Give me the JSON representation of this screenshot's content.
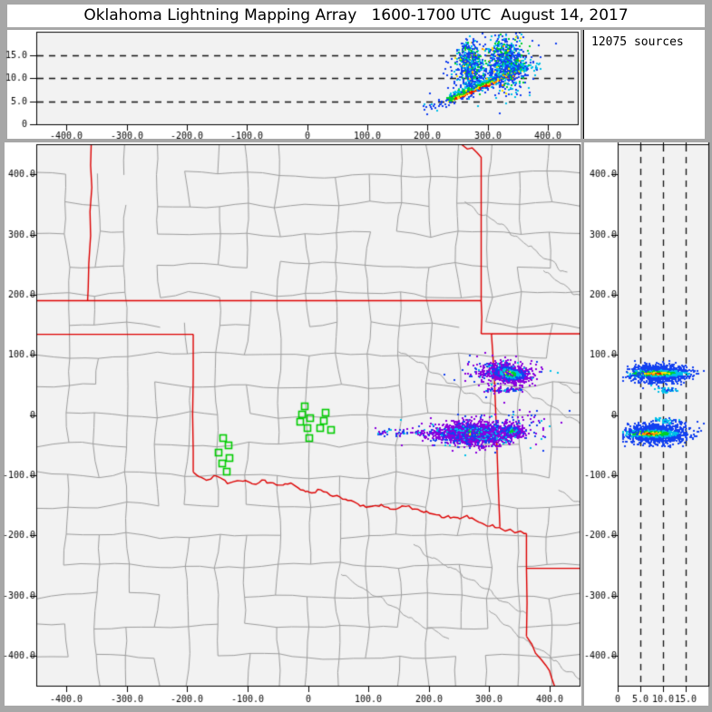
{
  "chart_data": {
    "type": "scatter",
    "title": "Oklahoma Lightning Mapping Array   1600-1700 UTC  August 14, 2017",
    "sources": 12075,
    "sources_label": "12075 sources",
    "seed": 20170814,
    "ui_colors": {
      "frame_bg": "#a7a7a7",
      "panel_bg": "#ffffff",
      "plot_bg": "#f2f2f2",
      "axis": "#000000",
      "dashed_line": "#111111"
    },
    "point_colors": {
      "purple": "#8a00dd",
      "blue": "#1240f0",
      "cyan": "#00c0e8",
      "green": "#00cf2e",
      "yellow": "#ffe800",
      "orange": "#ff9500",
      "red": "#ee1000",
      "darkred": "#b00000"
    },
    "km_ticks": [
      {
        "v": -400,
        "label": "-400.0"
      },
      {
        "v": -300,
        "label": "-300.0"
      },
      {
        "v": -200,
        "label": "-200.0"
      },
      {
        "v": -100,
        "label": "-100.0"
      },
      {
        "v": 0,
        "label": "0"
      },
      {
        "v": 100,
        "label": "100.0"
      },
      {
        "v": 200,
        "label": "200.0"
      },
      {
        "v": 300,
        "label": "300.0"
      },
      {
        "v": 400,
        "label": "400.0"
      }
    ],
    "alt_ticks": [
      {
        "v": 0,
        "label": "0"
      },
      {
        "v": 5,
        "label": "5.0"
      },
      {
        "v": 10,
        "label": "10.0"
      },
      {
        "v": 15,
        "label": "15.0"
      }
    ],
    "panels": {
      "ew": {
        "x_range": [
          -450,
          450
        ],
        "alt_range": [
          0,
          20
        ],
        "dashed_alts": [
          5,
          10,
          15
        ]
      },
      "plan": {
        "x_range": [
          -450,
          450
        ],
        "y_range": [
          -450,
          450
        ]
      },
      "ns": {
        "alt_range": [
          0,
          20
        ],
        "y_range": [
          -450,
          450
        ],
        "dashed_alts": [
          5,
          10,
          15
        ],
        "top_tick_alts": [
          0,
          5,
          10,
          15,
          20
        ]
      }
    },
    "map": {
      "state_border_color": "#dd0000",
      "county_color": "#9d9d9d",
      "station_color": "#00cc00",
      "state_borders": [
        [
          [
            -450,
            190
          ],
          [
            287,
            190
          ]
        ],
        [
          [
            254,
            450
          ],
          [
            264,
            442
          ],
          [
            272,
            444
          ],
          [
            280,
            436
          ],
          [
            287,
            428
          ],
          [
            287,
            190
          ]
        ],
        [
          [
            287,
            190
          ],
          [
            288,
            162
          ],
          [
            287,
            135
          ]
        ],
        [
          [
            287,
            135
          ],
          [
            304,
            135
          ]
        ],
        [
          [
            304,
            135
          ],
          [
            450,
            135
          ]
        ],
        [
          [
            304,
            135
          ],
          [
            309,
            60
          ],
          [
            312,
            -20
          ],
          [
            315,
            -110
          ],
          [
            318,
            -186
          ]
        ],
        [
          [
            -450,
            134
          ],
          [
            -190,
            134
          ]
        ],
        [
          [
            -359,
            450
          ],
          [
            -360,
            415
          ],
          [
            -358,
            378
          ],
          [
            -361,
            338
          ],
          [
            -360,
            298
          ],
          [
            -363,
            252
          ],
          [
            -364,
            210
          ],
          [
            -365,
            190
          ]
        ],
        [
          [
            -190,
            134
          ],
          [
            -190,
            62
          ],
          [
            -191,
            0
          ],
          [
            -190,
            -60
          ],
          [
            -190,
            -95
          ]
        ],
        [
          [
            318,
            -188
          ],
          [
            327,
            -193
          ],
          [
            335,
            -190
          ],
          [
            343,
            -196
          ],
          [
            352,
            -193
          ],
          [
            358,
            -197
          ],
          [
            362,
            -197
          ]
        ],
        [
          [
            362,
            -197
          ],
          [
            362,
            -255
          ],
          [
            363,
            -312
          ],
          [
            362,
            -368
          ]
        ],
        [
          [
            362,
            -255
          ],
          [
            450,
            -255
          ]
        ],
        [
          [
            362,
            -368
          ],
          [
            371,
            -381
          ],
          [
            377,
            -396
          ],
          [
            386,
            -406
          ],
          [
            394,
            -416
          ],
          [
            400,
            -425
          ],
          [
            404,
            -438
          ],
          [
            409,
            -452
          ]
        ]
      ],
      "red_river": [
        [
          -190,
          -95
        ],
        [
          -172,
          -108
        ],
        [
          -152,
          -101
        ],
        [
          -133,
          -112
        ],
        [
          -112,
          -107
        ],
        [
          -92,
          -115
        ],
        [
          -72,
          -109
        ],
        [
          -52,
          -117
        ],
        [
          -32,
          -113
        ],
        [
          -12,
          -123
        ],
        [
          2,
          -128
        ],
        [
          22,
          -125
        ],
        [
          42,
          -133
        ],
        [
          62,
          -140
        ],
        [
          82,
          -148
        ],
        [
          102,
          -155
        ],
        [
          122,
          -151
        ],
        [
          142,
          -158
        ],
        [
          162,
          -151
        ],
        [
          182,
          -158
        ],
        [
          202,
          -162
        ],
        [
          222,
          -168
        ],
        [
          242,
          -172
        ],
        [
          262,
          -169
        ],
        [
          282,
          -178
        ],
        [
          302,
          -184
        ],
        [
          318,
          -188
        ]
      ],
      "county_grid": {
        "cols": 18,
        "rows": 18,
        "jitter_km": 6,
        "skip": 0.18,
        "west_skip_boost": 0.15
      },
      "rivers": {
        "starts": [
          [
            150,
            105
          ],
          [
            295,
            80
          ],
          [
            415,
            55
          ],
          [
            175,
            -215
          ],
          [
            300,
            -325
          ],
          [
            55,
            -265
          ],
          [
            415,
            -125
          ],
          [
            260,
            355
          ],
          [
            390,
            240
          ]
        ],
        "steps": 45
      },
      "stations": [
        [
          -5.6,
          14.5
        ],
        [
          -9.1,
          0.9
        ],
        [
          -12.5,
          -11.8
        ],
        [
          4.1,
          -5.7
        ],
        [
          -0.5,
          -21.7
        ],
        [
          2.6,
          -38.9
        ],
        [
          19.6,
          -22.3
        ],
        [
          29.1,
          3.9
        ],
        [
          26.7,
          -9.7
        ],
        [
          38.8,
          -24.3
        ],
        [
          -140,
          -38
        ],
        [
          -132,
          -51
        ],
        [
          -148,
          -62
        ],
        [
          -130,
          -71
        ],
        [
          -142,
          -80
        ],
        [
          -135,
          -94
        ]
      ]
    },
    "palettes": {
      "plume": [
        [
          "blue",
          0.5
        ],
        [
          "cyan",
          0.27
        ],
        [
          "green",
          0.17
        ],
        [
          "yellow",
          0.04
        ],
        [
          "orange",
          0.02
        ]
      ],
      "sparseblue": [
        [
          "blue",
          0.8
        ],
        [
          "cyan",
          0.2
        ]
      ],
      "cyanblue": [
        [
          "cyan",
          0.6
        ],
        [
          "blue",
          0.4
        ]
      ],
      "purpleblue": [
        [
          "purple",
          0.55
        ],
        [
          "blue",
          0.33
        ],
        [
          "cyan",
          0.12
        ]
      ]
    },
    "lightning": {
      "ew": [
        {
          "kind": "streak",
          "n": 1500,
          "x1": 236,
          "a1": 4.95,
          "x2": 361,
          "a2": 11.9
        },
        {
          "kind": "gauss",
          "n": 520,
          "cx": 271,
          "cy": 12.8,
          "sx": 10,
          "sy": 2.5,
          "palette": "plume"
        },
        {
          "kind": "gauss",
          "n": 680,
          "cx": 331,
          "cy": 13.4,
          "sx": 15,
          "sy": 2.7,
          "palette": "plume"
        },
        {
          "kind": "gauss",
          "n": 130,
          "cx": 300,
          "cy": 12.2,
          "sx": 46,
          "sy": 3.6,
          "palette": "sparseblue"
        },
        {
          "kind": "line",
          "n": 28,
          "x1": 192,
          "y1": 3.0,
          "x2": 236,
          "y2": 4.9,
          "jitter": 0.7,
          "palette": "sparseblue"
        },
        {
          "kind": "line",
          "n": 26,
          "x1": 361,
          "y1": 11.9,
          "x2": 391,
          "y2": 12.7,
          "jitter": 0.5,
          "palette": "cyanblue"
        }
      ],
      "plan": [
        {
          "kind": "ellipse",
          "n": 950,
          "cx": 333,
          "cy": 69,
          "sx": 17,
          "sy": 7,
          "rot_deg": -9,
          "thresholds": [
            [
              0.38,
              "yellow"
            ],
            [
              0.75,
              "green"
            ],
            [
              1.1,
              "cyan"
            ],
            [
              1.55,
              "blue"
            ],
            [
              9,
              "purple"
            ]
          ]
        },
        {
          "kind": "gauss",
          "n": 160,
          "cx": 320,
          "cy": 70,
          "sx": 36,
          "sy": 12,
          "palette": "purpleblue"
        },
        {
          "kind": "line",
          "n": 60,
          "x1": 294,
          "y1": 40,
          "x2": 357,
          "y2": 42,
          "jitter": 1.8,
          "palette": "purpleblue"
        },
        {
          "kind": "ellipse",
          "n": 1350,
          "cx": 274,
          "cy": -31,
          "sx": 25,
          "sy": 8,
          "rot_deg": -3,
          "thresholds": [
            [
              0.36,
              "yellow"
            ],
            [
              0.72,
              "green"
            ],
            [
              1.08,
              "cyan"
            ],
            [
              1.55,
              "blue"
            ],
            [
              9,
              "purple"
            ]
          ]
        },
        {
          "kind": "ellipse",
          "n": 230,
          "cx": 338,
          "cy": -27,
          "sx": 10,
          "sy": 5,
          "rot_deg": 0,
          "thresholds": [
            [
              0.55,
              "green"
            ],
            [
              0.95,
              "cyan"
            ],
            [
              1.45,
              "blue"
            ],
            [
              9,
              "purple"
            ]
          ]
        },
        {
          "kind": "line",
          "n": 95,
          "x1": 108,
          "y1": -28,
          "x2": 242,
          "y2": -33,
          "jitter": 3.5,
          "palette": "purpleblue"
        },
        {
          "kind": "gauss",
          "n": 90,
          "cx": 345,
          "cy": -18,
          "sx": 28,
          "sy": 14,
          "palette": "purpleblue"
        },
        {
          "kind": "gauss",
          "n": 620,
          "cx": 274,
          "cy": -31,
          "sx": 40,
          "sy": 11,
          "palette": "purpleblue"
        }
      ],
      "ns": [
        {
          "kind": "band",
          "n": 1050,
          "cy": 69,
          "sy": 7,
          "alt_mean": 9.3,
          "alt_sd": 3.0,
          "core_alt": 8.3,
          "core_sd": 4.3,
          "dy_w": 0.45,
          "thresholds": [
            [
              0.27,
              "red"
            ],
            [
              0.5,
              "orange"
            ],
            [
              0.72,
              "yellow"
            ],
            [
              1.15,
              "green"
            ],
            [
              1.8,
              "cyan"
            ],
            [
              9,
              "blue"
            ]
          ]
        },
        {
          "kind": "band",
          "n": 1200,
          "cy": -31,
          "sy": 8,
          "alt_mean": 8.6,
          "alt_sd": 3.3,
          "core_alt": 7.0,
          "core_sd": 3.4,
          "dy_w": 0.4,
          "thresholds": [
            [
              0.22,
              "darkred"
            ],
            [
              0.38,
              "red"
            ],
            [
              0.55,
              "orange"
            ],
            [
              0.8,
              "yellow"
            ],
            [
              1.3,
              "green"
            ],
            [
              2.0,
              "cyan"
            ],
            [
              9,
              "blue"
            ]
          ]
        },
        {
          "kind": "gauss",
          "n": 40,
          "cx": 10.8,
          "cy": 41,
          "sx": 1.2,
          "sy": 2.6,
          "palette": "cyanblue"
        },
        {
          "kind": "gauss",
          "n": 45,
          "cx": 11.0,
          "cy": -11,
          "sx": 1.3,
          "sy": 3.0,
          "palette": "cyanblue"
        },
        {
          "kind": "gauss",
          "n": 30,
          "cx": 3.4,
          "cy": -33,
          "sx": 1.2,
          "sy": 5,
          "palette": "sparseblue"
        },
        {
          "kind": "gauss",
          "n": 22,
          "cx": 4.2,
          "cy": 69,
          "sx": 1.0,
          "sy": 4,
          "palette": "sparseblue"
        }
      ]
    }
  }
}
